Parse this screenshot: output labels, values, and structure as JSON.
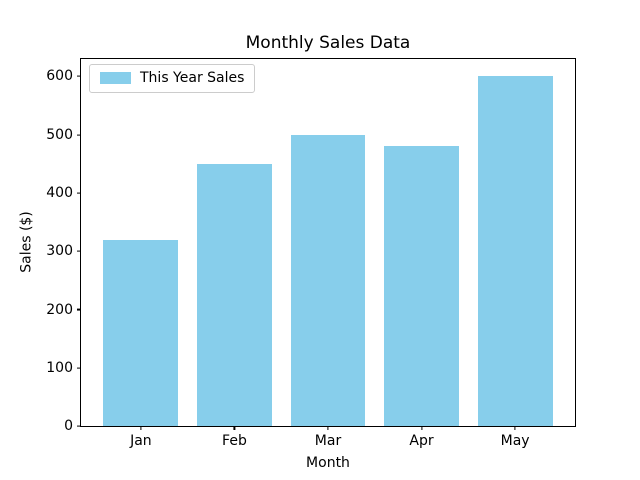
{
  "chart_data": {
    "type": "bar",
    "title": "Monthly Sales Data",
    "xlabel": "Month",
    "ylabel": "Sales ($)",
    "categories": [
      "Jan",
      "Feb",
      "Mar",
      "Apr",
      "May"
    ],
    "series": [
      {
        "name": "This Year Sales",
        "values": [
          320,
          450,
          500,
          480,
          600
        ]
      }
    ],
    "yticks": [
      0,
      100,
      200,
      300,
      400,
      500,
      600
    ],
    "ylim": [
      0,
      630
    ],
    "bar_width_ratio": 0.8,
    "grid": false,
    "legend": {
      "position": "upper left",
      "entries": [
        "This Year Sales"
      ]
    },
    "colors": {
      "bar": "#87CEEB",
      "spine": "#000000",
      "text": "#000000",
      "legend_border": "#cccccc",
      "background": "#ffffff"
    }
  }
}
